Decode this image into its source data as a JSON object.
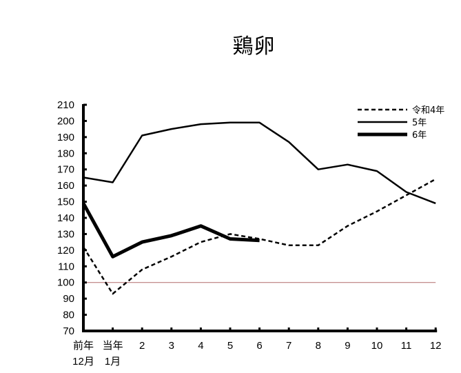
{
  "chart_data": {
    "type": "line",
    "title": "鶏卵",
    "xlabel": "",
    "ylabel": "",
    "ylim": [
      70,
      210
    ],
    "yticks": [
      70,
      80,
      90,
      100,
      110,
      120,
      130,
      140,
      150,
      160,
      170,
      180,
      190,
      200,
      210
    ],
    "categories": [
      [
        "前年",
        "12月"
      ],
      [
        "当年",
        "1月"
      ],
      [
        "2"
      ],
      [
        "3"
      ],
      [
        "4"
      ],
      [
        "5"
      ],
      [
        "6"
      ],
      [
        "7"
      ],
      [
        "8"
      ],
      [
        "9"
      ],
      [
        "10"
      ],
      [
        "11"
      ],
      [
        "12"
      ]
    ],
    "grid": false,
    "legend_position": "top-right",
    "reference_line": {
      "value": 100,
      "color": "#b06a6a"
    },
    "series": [
      {
        "name": "令和4年",
        "style": "dashed",
        "width": 2.5,
        "color": "#000000",
        "values": [
          122,
          93,
          108,
          116,
          125,
          130,
          127,
          123,
          123,
          135,
          144,
          154,
          164
        ]
      },
      {
        "name": "5年",
        "style": "solid",
        "width": 2.5,
        "color": "#000000",
        "values": [
          165,
          162,
          191,
          195,
          198,
          199,
          199,
          187,
          170,
          173,
          169,
          156,
          149
        ]
      },
      {
        "name": "6年",
        "style": "solid",
        "width": 5,
        "color": "#000000",
        "values": [
          149,
          116,
          125,
          129,
          135,
          127,
          126,
          null,
          null,
          null,
          null,
          null,
          null
        ]
      }
    ]
  }
}
